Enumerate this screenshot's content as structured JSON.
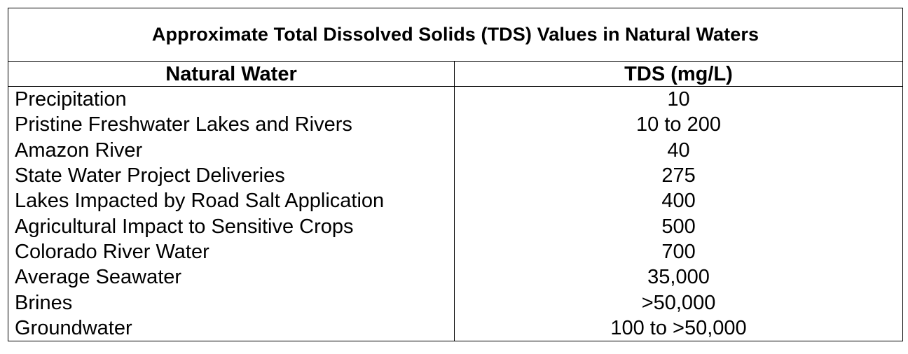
{
  "table": {
    "title": "Approximate Total Dissolved Solids (TDS) Values in Natural Waters",
    "headers": {
      "water": "Natural Water",
      "tds": "TDS (mg/L)"
    },
    "rows": [
      {
        "water": "Precipitation",
        "tds": "10"
      },
      {
        "water": "Pristine Freshwater Lakes and Rivers",
        "tds": "10 to 200"
      },
      {
        "water": "Amazon River",
        "tds": "40"
      },
      {
        "water": "State Water Project Deliveries",
        "tds": "275"
      },
      {
        "water": "Lakes Impacted by Road Salt Application",
        "tds": "400"
      },
      {
        "water": "Agricultural Impact to Sensitive Crops",
        "tds": "500"
      },
      {
        "water": "Colorado River Water",
        "tds": "700"
      },
      {
        "water": "Average Seawater",
        "tds": "35,000"
      },
      {
        "water": "Brines",
        "tds": ">50,000"
      },
      {
        "water": "Groundwater",
        "tds": "100 to >50,000"
      }
    ]
  }
}
